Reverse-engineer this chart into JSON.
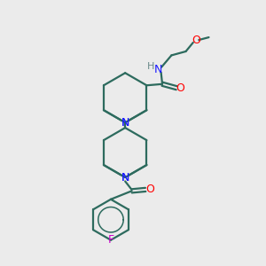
{
  "bg_color": "#ebebeb",
  "bond_color": "#2d6b5e",
  "N_color": "#1a1aff",
  "O_color": "#ff0000",
  "F_color": "#cc00cc",
  "H_color": "#6a8a8a",
  "line_width": 1.6,
  "fig_size": [
    3.0,
    3.0
  ],
  "dpi": 100,
  "xlim": [
    0,
    10
  ],
  "ylim": [
    0,
    10
  ]
}
